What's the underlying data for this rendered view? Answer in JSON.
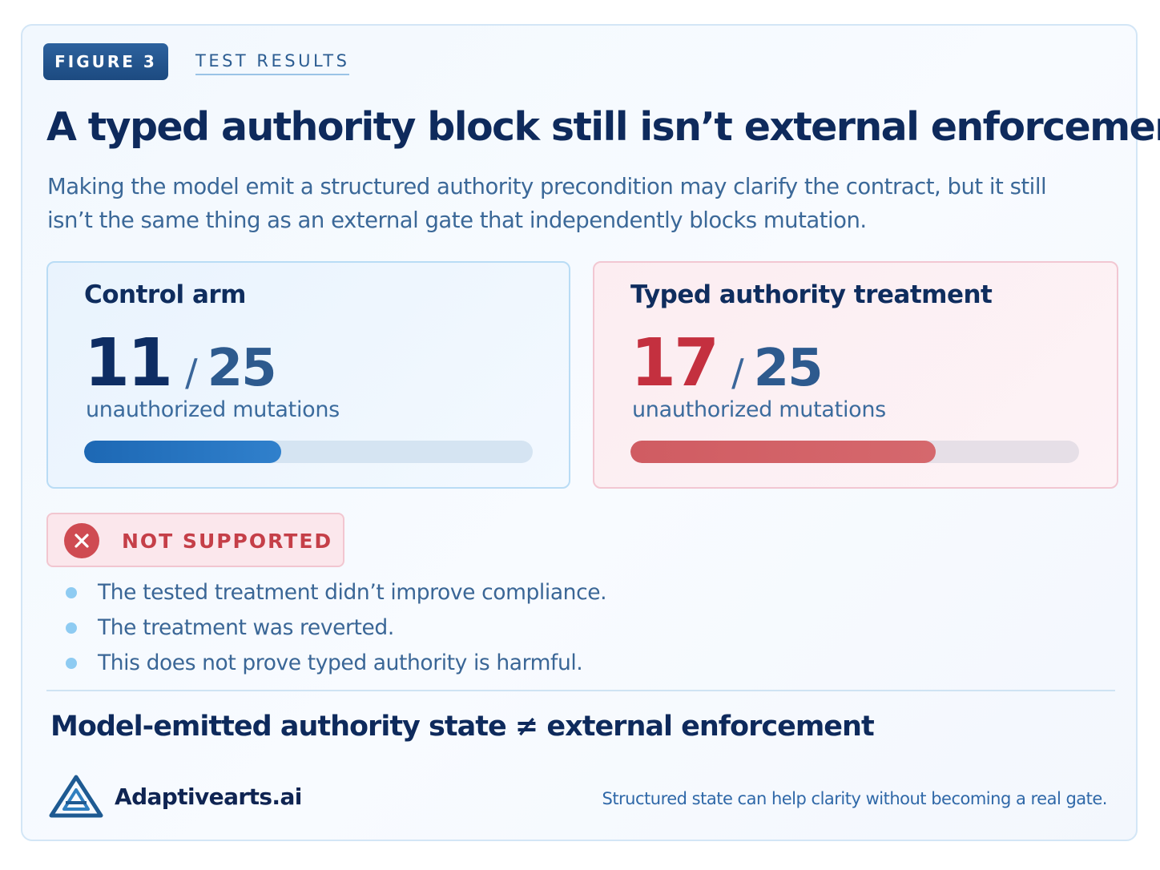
{
  "figure": {
    "badge": "FIGURE 3",
    "tag": "TEST RESULTS"
  },
  "title": "A typed authority block still isn’t external enforcement",
  "subtitle": "Making the model emit a structured authority precondition may clarify the contract, but it still isn’t the same thing as an external gate that independently blocks mutation.",
  "panels": {
    "control": {
      "title": "Control arm",
      "count": "11",
      "separator": "/",
      "total": "25",
      "caption": "unauthorized mutations",
      "fill_fraction": 0.44
    },
    "treatment": {
      "title": "Typed authority treatment",
      "count": "17",
      "separator": "/",
      "total": "25",
      "caption": "unauthorized mutations",
      "fill_fraction": 0.68
    }
  },
  "verdict": {
    "label": "NOT SUPPORTED",
    "icon": "x-circle-icon"
  },
  "bullets": [
    "The tested treatment didn’t improve compliance.",
    "The treatment was reverted.",
    "This does not prove typed authority is harmful."
  ],
  "conclusion": "Model-emitted authority state ≠ external enforcement",
  "footer": {
    "brand": "Adaptivearts.ai",
    "logo_icon": "triangle-logo-icon",
    "tagline": "Structured state can help clarity without becoming a real gate."
  },
  "colors": {
    "primary": "#0e2a5c",
    "control_bar": "#1d68b4",
    "treatment_bar": "#d05c62",
    "treatment_accent": "#c4303f",
    "verdict": "#c53f48"
  }
}
